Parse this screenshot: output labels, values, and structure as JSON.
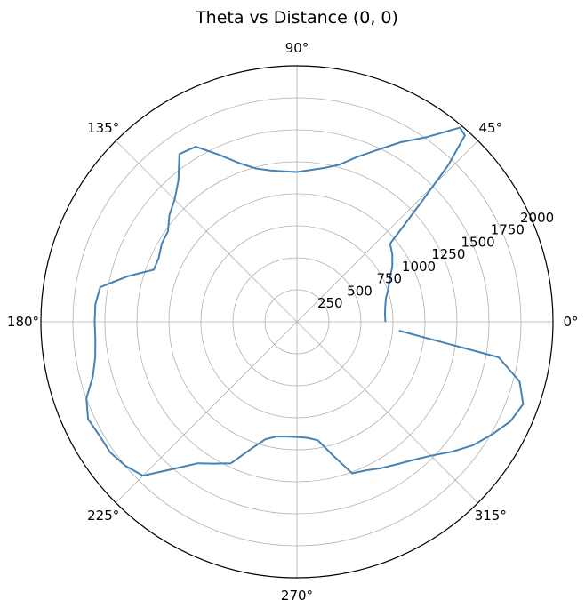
{
  "chart_data": {
    "type": "line",
    "projection": "polar",
    "title": "Theta vs Distance (0, 0)",
    "theta_ticks": [
      "0°",
      "45°",
      "90°",
      "135°",
      "180°",
      "225°",
      "270°",
      "315°"
    ],
    "r_ticks": [
      "250",
      "500",
      "750",
      "1000",
      "1250",
      "1500",
      "1750",
      "2000"
    ],
    "r_tick_values": [
      250,
      500,
      750,
      1000,
      1250,
      1500,
      1750,
      2000
    ],
    "rlim": [
      0,
      2000
    ],
    "r_label_angle_deg": 22.5,
    "grid": true,
    "series_color": "#4682b4",
    "series": [
      {
        "theta_deg": [
          0,
          5,
          10,
          15,
          20,
          25,
          30,
          35,
          40,
          42,
          44,
          46,
          48,
          50,
          55,
          60,
          65,
          70,
          75,
          80,
          85,
          90,
          95,
          100,
          105,
          110,
          115,
          120,
          125,
          130,
          135,
          140,
          145,
          150,
          155,
          160,
          165,
          170,
          175,
          180,
          185,
          190,
          195,
          200,
          205,
          210,
          215,
          220,
          225,
          230,
          235,
          240,
          245,
          250,
          255,
          260,
          265,
          270,
          275,
          280,
          285,
          290,
          295,
          300,
          305,
          310,
          315,
          320,
          325,
          330,
          335,
          340,
          345,
          350,
          355
        ],
        "r": [
          690,
          690,
          700,
          720,
          760,
          800,
          860,
          910,
          950,
          1120,
          1360,
          1700,
          1960,
          1980,
          1760,
          1620,
          1480,
          1370,
          1270,
          1220,
          1190,
          1170,
          1180,
          1200,
          1240,
          1320,
          1440,
          1580,
          1600,
          1440,
          1350,
          1300,
          1230,
          1220,
          1190,
          1190,
          1370,
          1560,
          1580,
          1580,
          1580,
          1600,
          1650,
          1750,
          1800,
          1780,
          1780,
          1750,
          1700,
          1500,
          1350,
          1280,
          1220,
          1060,
          950,
          910,
          900,
          900,
          910,
          940,
          1080,
          1260,
          1280,
          1320,
          1360,
          1410,
          1480,
          1580,
          1680,
          1760,
          1840,
          1880,
          1800,
          1600,
          800
        ]
      }
    ]
  }
}
